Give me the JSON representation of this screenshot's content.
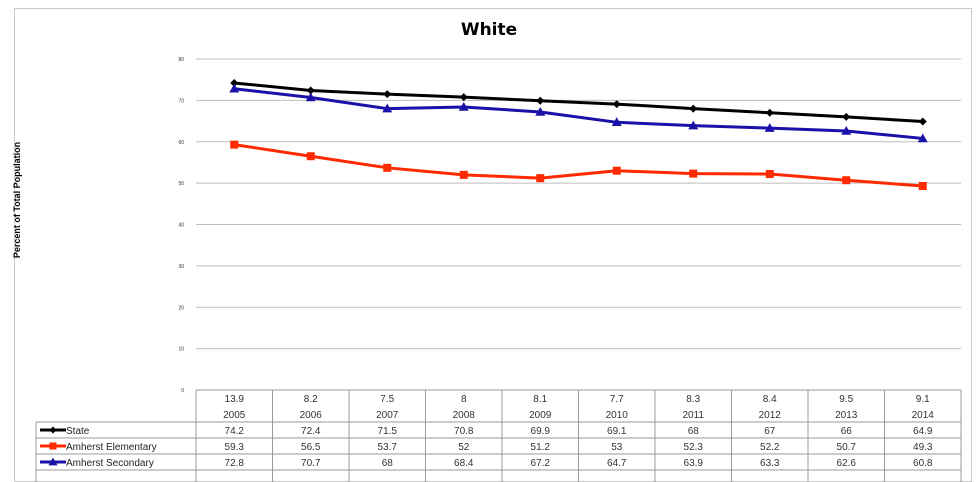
{
  "chart_data": {
    "type": "line",
    "title": "White",
    "ylabel": "Percent of Total Population",
    "xlabel": "",
    "ylim": [
      0,
      80
    ],
    "yticks": [
      "0",
      "10",
      "20",
      "30",
      "40",
      "50",
      "60",
      "70",
      "80"
    ],
    "grid": true,
    "legend_placement": "data table, left",
    "categories": [
      "2005",
      "2006",
      "2007",
      "2008",
      "2009",
      "2010",
      "2011",
      "2012",
      "2013",
      "2014"
    ],
    "top_row": [
      "13.9",
      "8.2",
      "7.5",
      "8",
      "8.1",
      "7.7",
      "8.3",
      "8.4",
      "9.5",
      "9.1"
    ],
    "series": [
      {
        "name": "State",
        "color": "#000000",
        "marker": "diamond",
        "values": [
          74.2,
          72.4,
          71.5,
          70.8,
          69.9,
          69.1,
          68,
          67,
          66,
          64.9
        ],
        "labels": [
          "74.2",
          "72.4",
          "71.5",
          "70.8",
          "69.9",
          "69.1",
          "68",
          "67",
          "66",
          "64.9"
        ]
      },
      {
        "name": "Amherst Elementary",
        "color": "#ff2a00",
        "marker": "square",
        "values": [
          59.3,
          56.5,
          53.7,
          52,
          51.2,
          53,
          52.3,
          52.2,
          50.7,
          49.3
        ],
        "labels": [
          "59.3",
          "56.5",
          "53.7",
          "52",
          "51.2",
          "53",
          "52.3",
          "52.2",
          "50.7",
          "49.3"
        ]
      },
      {
        "name": "Amherst Secondary",
        "color": "#1a12a8",
        "marker": "triangle",
        "values": [
          72.8,
          70.7,
          68,
          68.4,
          67.2,
          64.7,
          63.9,
          63.3,
          62.6,
          60.8
        ],
        "labels": [
          "72.8",
          "70.7",
          "68",
          "68.4",
          "67.2",
          "64.7",
          "63.9",
          "63.3",
          "62.6",
          "60.8"
        ]
      }
    ]
  }
}
